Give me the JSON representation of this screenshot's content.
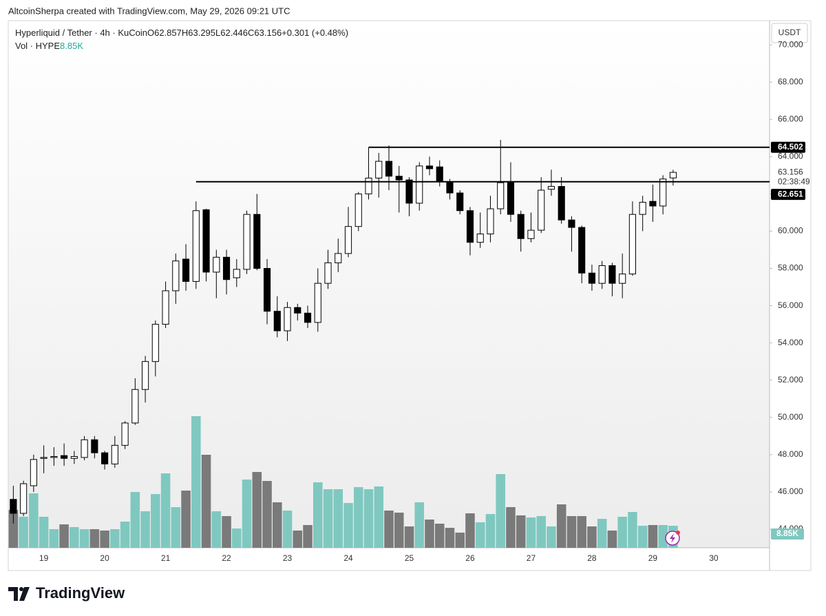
{
  "chart_data": {
    "type": "candlestick",
    "title": "AltcoinSherpa created with TradingView.com, May 29, 2026 09:21 UTC",
    "legend": {
      "symbol": "Hyperliquid / Tether · 4h · KuCoin",
      "fields": [
        "O",
        "H",
        "L",
        "C"
      ],
      "change": "+0.301 (+0.48%)",
      "volume_title": "Vol · HYPE"
    },
    "currency_button": "USDT",
    "countdown": "02:38:49",
    "brand": "TradingView",
    "categories": [
      null,
      null,
      null,
      "19",
      null,
      null,
      null,
      null,
      null,
      "20",
      null,
      null,
      null,
      null,
      null,
      "21",
      null,
      null,
      null,
      null,
      null,
      "22",
      null,
      null,
      null,
      null,
      null,
      "23",
      null,
      null,
      null,
      null,
      null,
      "24",
      null,
      null,
      null,
      null,
      null,
      "25",
      null,
      null,
      null,
      null,
      null,
      "26",
      null,
      null,
      null,
      null,
      null,
      "27",
      null,
      null,
      null,
      null,
      null,
      "28",
      null,
      null,
      null,
      null,
      null,
      "29",
      null,
      null,
      null,
      null,
      null,
      "30",
      null,
      null,
      null,
      null,
      null
    ],
    "open": [
      45.6,
      44.85,
      46.33,
      47.8,
      47.85,
      47.95,
      47.8,
      47.85,
      48.8,
      48.1,
      47.5,
      48.5,
      49.7,
      51.5,
      53.0,
      55.0,
      56.8,
      58.5,
      57.3,
      61.15,
      57.8,
      58.6,
      57.5,
      57.95,
      60.9,
      58.0,
      55.7,
      54.65,
      55.9,
      55.6,
      55.1,
      57.2,
      58.3,
      58.8,
      60.25,
      62.0,
      62.85,
      63.75,
      62.95,
      62.75,
      61.5,
      63.5,
      63.45,
      62.65,
      62.05,
      61.1,
      59.4,
      59.85,
      61.2,
      62.6,
      60.9,
      59.6,
      60.05,
      62.25,
      62.4,
      60.6,
      60.2,
      57.75,
      57.2,
      58.15,
      57.2,
      57.7,
      60.9,
      61.6,
      61.35,
      62.857,
      null,
      null,
      null,
      null,
      null,
      null,
      null,
      null,
      null
    ],
    "high": [
      46.33,
      46.6,
      48.0,
      48.5,
      48.4,
      48.6,
      48.2,
      49.0,
      49.0,
      48.2,
      49.0,
      49.8,
      52.1,
      53.3,
      55.2,
      57.3,
      58.8,
      59.3,
      61.6,
      61.2,
      59.0,
      59.0,
      58.5,
      61.1,
      62.0,
      58.5,
      56.5,
      56.2,
      56.1,
      56.0,
      58.0,
      59.0,
      59.6,
      61.3,
      62.1,
      64.5,
      64.2,
      64.6,
      63.5,
      62.9,
      63.7,
      64.0,
      63.8,
      62.8,
      62.2,
      61.3,
      61.0,
      61.9,
      64.9,
      63.7,
      61.1,
      61.0,
      62.9,
      63.3,
      62.9,
      60.8,
      60.3,
      58.2,
      58.4,
      58.3,
      58.8,
      61.6,
      61.9,
      62.5,
      63.0,
      63.295,
      null,
      null,
      null,
      null,
      null,
      null,
      null,
      null,
      null
    ],
    "low": [
      44.3,
      44.7,
      46.0,
      47.0,
      47.4,
      47.4,
      47.5,
      47.7,
      47.8,
      47.2,
      47.3,
      48.3,
      49.6,
      50.8,
      52.2,
      54.8,
      56.1,
      56.8,
      56.9,
      57.3,
      56.4,
      56.6,
      57.0,
      57.7,
      57.9,
      55.0,
      54.3,
      54.1,
      55.2,
      54.8,
      54.6,
      56.9,
      57.8,
      58.6,
      60.0,
      61.7,
      61.8,
      62.2,
      61.0,
      60.8,
      61.1,
      63.0,
      62.4,
      61.7,
      60.9,
      58.7,
      59.1,
      59.4,
      60.9,
      60.5,
      58.9,
      59.4,
      59.9,
      61.9,
      60.4,
      58.9,
      57.2,
      56.8,
      56.9,
      56.5,
      56.4,
      57.6,
      60.0,
      60.5,
      60.9,
      62.446,
      null,
      null,
      null,
      null,
      null,
      null,
      null,
      null,
      null
    ],
    "close": [
      44.85,
      46.44,
      47.74,
      47.85,
      47.9,
      47.8,
      47.9,
      48.8,
      48.1,
      47.5,
      48.5,
      49.7,
      51.5,
      53.0,
      55.0,
      56.8,
      58.4,
      57.3,
      61.1,
      57.8,
      58.6,
      57.4,
      57.95,
      60.9,
      58.0,
      55.7,
      54.65,
      55.9,
      55.6,
      55.1,
      57.2,
      58.3,
      58.8,
      60.25,
      62.0,
      62.85,
      63.75,
      62.95,
      62.75,
      61.5,
      63.5,
      63.35,
      62.65,
      62.05,
      61.1,
      59.4,
      59.85,
      61.2,
      62.6,
      60.9,
      59.6,
      60.05,
      62.2,
      62.4,
      60.6,
      60.2,
      57.75,
      57.2,
      58.15,
      57.2,
      57.7,
      60.9,
      61.55,
      61.35,
      62.8,
      63.156,
      null,
      null,
      null,
      null,
      null,
      null,
      null,
      null,
      null
    ],
    "volume": [
      15210,
      12450,
      21850,
      12450,
      7470,
      9400,
      8300,
      7470,
      7470,
      6920,
      7470,
      10510,
      22400,
      14660,
      21570,
      29870,
      16320,
      22960,
      52830,
      37340,
      14660,
      12720,
      7740,
      27380,
      30430,
      26830,
      18260,
      14940,
      6920,
      9130,
      26280,
      23510,
      23510,
      17980,
      24340,
      23510,
      24620,
      14940,
      14110,
      8570,
      18260,
      11340,
      9680,
      8020,
      6090,
      13830,
      10230,
      13550,
      29600,
      16320,
      13000,
      12170,
      12720,
      8570,
      17430,
      12720,
      12720,
      8570,
      11620,
      6920,
      12450,
      14380,
      8850,
      9130,
      9130,
      8850,
      null,
      null,
      null,
      null,
      null,
      null,
      null,
      null,
      null
    ],
    "volume_labels": [
      null,
      null,
      null,
      null,
      null,
      null,
      null,
      null,
      null,
      null,
      null,
      null,
      null,
      null,
      null,
      null,
      null,
      null,
      null,
      null,
      null,
      null,
      null,
      null,
      null,
      null,
      null,
      null,
      null,
      null,
      null,
      null,
      null,
      null,
      null,
      null,
      null,
      null,
      null,
      null,
      null,
      null,
      null,
      null,
      null,
      null,
      null,
      null,
      null,
      null,
      null,
      null,
      null,
      null,
      null,
      null,
      null,
      null,
      null,
      null,
      null,
      null,
      null,
      null,
      null,
      "8.85K",
      null,
      null,
      null,
      null,
      null,
      null,
      null,
      null,
      null
    ],
    "ylim": [
      43.0,
      71.3
    ],
    "yticks": [
      {
        "value": 44,
        "label": "44.000"
      },
      {
        "value": 46,
        "label": "46.000"
      },
      {
        "value": 48,
        "label": "48.000"
      },
      {
        "value": 50,
        "label": "50.000"
      },
      {
        "value": 52,
        "label": "52.000"
      },
      {
        "value": 54,
        "label": "54.000"
      },
      {
        "value": 56,
        "label": "56.000"
      },
      {
        "value": 58,
        "label": "58.000"
      },
      {
        "value": 60,
        "label": "60.000"
      },
      {
        "value": 62,
        "label": "62.000"
      },
      {
        "value": 64,
        "label": "64.000"
      },
      {
        "value": 66,
        "label": "66.000"
      },
      {
        "value": 68,
        "label": "68.000"
      },
      {
        "value": 70,
        "label": "70.000"
      }
    ],
    "volume_lim": [
      0,
      211600
    ],
    "lines": [
      {
        "value": 64.502,
        "from": 35
      },
      {
        "value": 62.651,
        "from": 18
      }
    ],
    "up_color": "#ffffff",
    "down_color": "#000000",
    "wick_color": "#000000",
    "volume_up_color": "#7fc8c0",
    "volume_down_color": "#7a7a7a",
    "grid": false
  }
}
